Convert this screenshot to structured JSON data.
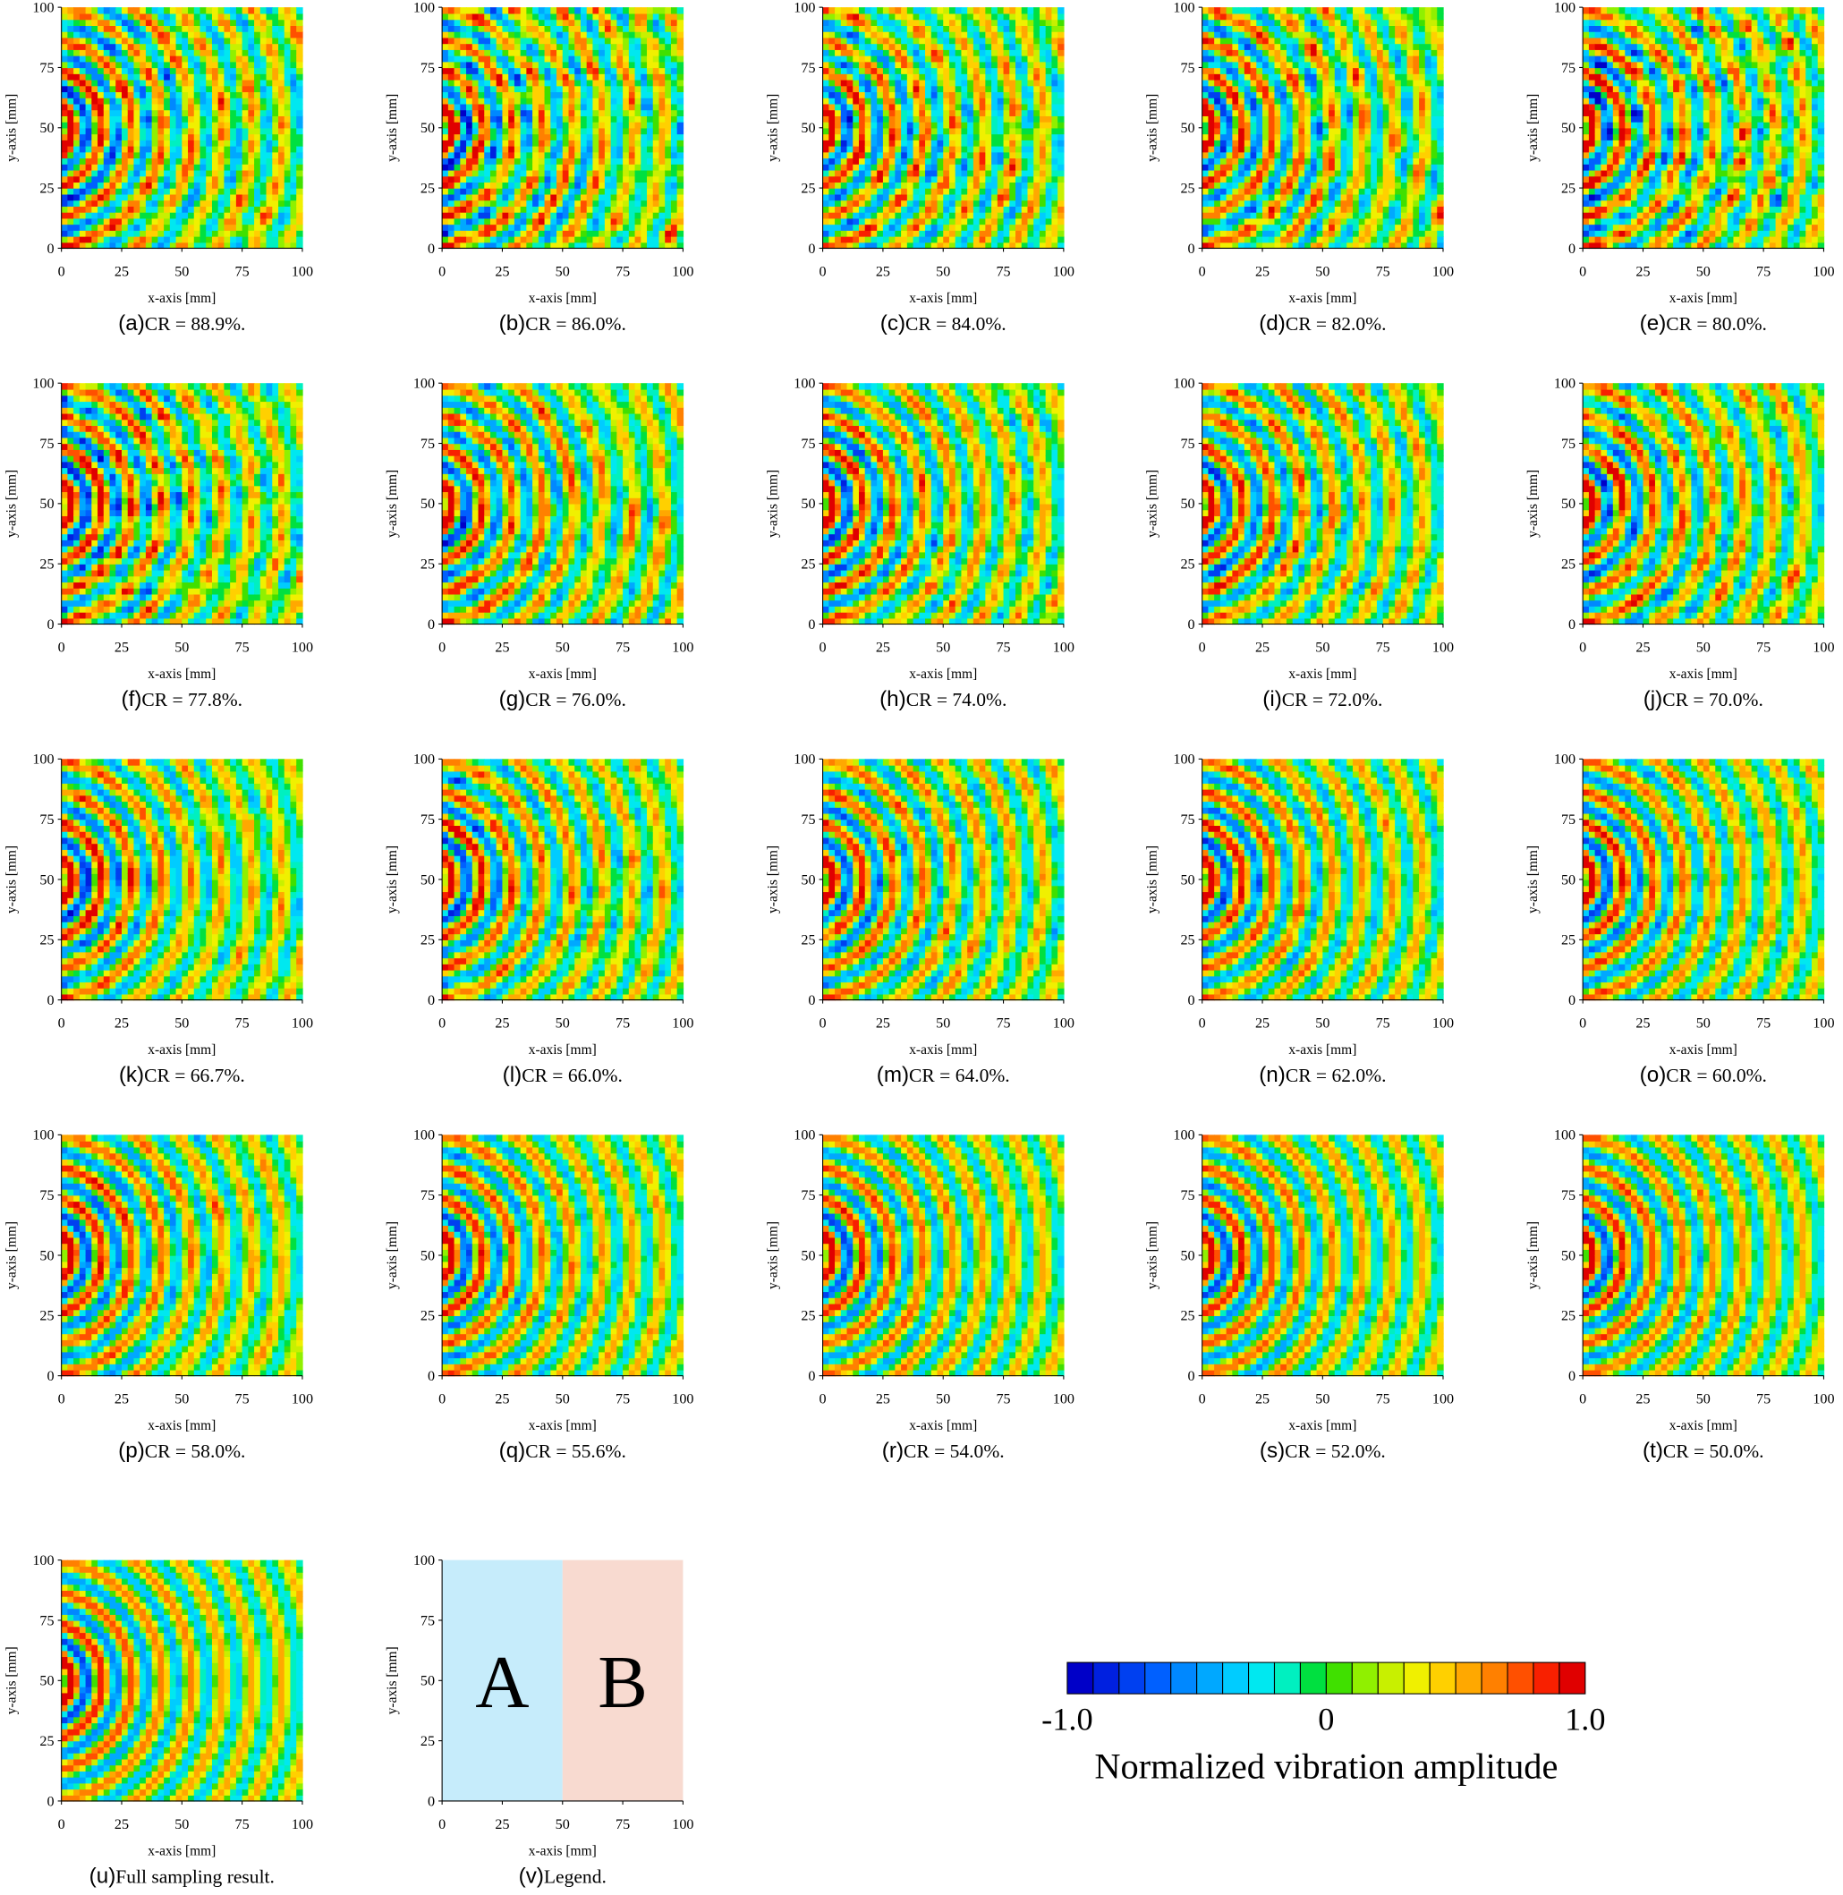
{
  "axes": {
    "x_label": "x-axis [mm]",
    "y_label": "y-axis [mm]",
    "xlim": [
      0,
      100
    ],
    "ylim": [
      0,
      100
    ],
    "xticks": [
      0,
      25,
      50,
      75,
      100
    ],
    "yticks": [
      0,
      25,
      50,
      75,
      100
    ]
  },
  "panels": [
    {
      "tag": "(a)",
      "caption": "CR = 88.9%."
    },
    {
      "tag": "(b)",
      "caption": "CR = 86.0%."
    },
    {
      "tag": "(c)",
      "caption": "CR = 84.0%."
    },
    {
      "tag": "(d)",
      "caption": "CR = 82.0%."
    },
    {
      "tag": "(e)",
      "caption": "CR = 80.0%."
    },
    {
      "tag": "(f)",
      "caption": "CR = 77.8%."
    },
    {
      "tag": "(g)",
      "caption": "CR = 76.0%."
    },
    {
      "tag": "(h)",
      "caption": "CR = 74.0%."
    },
    {
      "tag": "(i)",
      "caption": "CR = 72.0%."
    },
    {
      "tag": "(j)",
      "caption": "CR = 70.0%."
    },
    {
      "tag": "(k)",
      "caption": "CR = 66.7%."
    },
    {
      "tag": "(l)",
      "caption": "CR = 66.0%."
    },
    {
      "tag": "(m)",
      "caption": "CR = 64.0%."
    },
    {
      "tag": "(n)",
      "caption": "CR = 62.0%."
    },
    {
      "tag": "(o)",
      "caption": "CR = 60.0%."
    },
    {
      "tag": "(p)",
      "caption": "CR = 58.0%."
    },
    {
      "tag": "(q)",
      "caption": "CR = 55.6%."
    },
    {
      "tag": "(r)",
      "caption": "CR = 54.0%."
    },
    {
      "tag": "(s)",
      "caption": "CR = 52.0%."
    },
    {
      "tag": "(t)",
      "caption": "CR = 50.0%."
    },
    {
      "tag": "(u)",
      "caption": "Full sampling result."
    }
  ],
  "legend_panel": {
    "tag": "(v)",
    "caption": "Legend.",
    "regions": [
      {
        "name": "A",
        "x_range": [
          0,
          50
        ],
        "color": "#c6ecfb"
      },
      {
        "name": "B",
        "x_range": [
          50,
          100
        ],
        "color": "#f8dad0"
      }
    ]
  },
  "colorbar": {
    "label": "Normalized vibration amplitude",
    "lim": [
      -1,
      1
    ],
    "ticks": [
      {
        "value": -1,
        "label": "-1.0"
      },
      0,
      {
        "value": 1,
        "label": "1.0"
      }
    ],
    "colors": [
      "#0000c8",
      "#0020e0",
      "#0040f0",
      "#0060ff",
      "#0088ff",
      "#00a8ff",
      "#00ccff",
      "#00e8f0",
      "#00f0c0",
      "#00e040",
      "#40e000",
      "#90f000",
      "#c8f000",
      "#f0f000",
      "#ffd000",
      "#ffa800",
      "#ff8000",
      "#ff5000",
      "#f82000",
      "#e00000"
    ]
  }
}
